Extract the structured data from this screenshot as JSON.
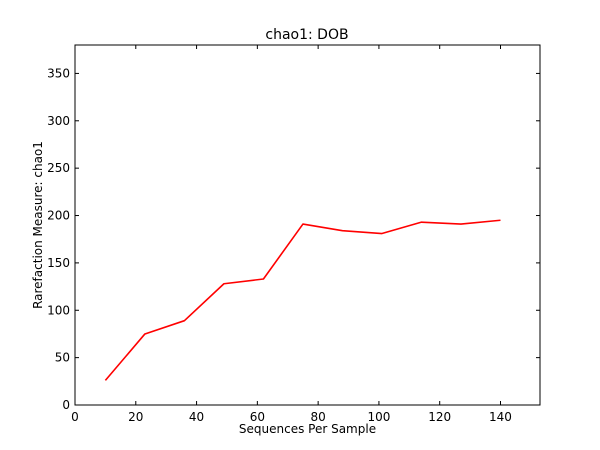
{
  "chart_data": {
    "type": "line",
    "title": "chao1: DOB",
    "xlabel": "Sequences Per Sample",
    "ylabel": "Rarefaction Measure: chao1",
    "xlim": [
      0,
      153
    ],
    "ylim": [
      0,
      380
    ],
    "x_ticks": [
      0,
      20,
      40,
      60,
      80,
      100,
      120,
      140
    ],
    "y_ticks": [
      0,
      50,
      100,
      150,
      200,
      250,
      300,
      350
    ],
    "grid": false,
    "series": [
      {
        "color": "#ff0000",
        "x": [
          10,
          23,
          36,
          49,
          62,
          75,
          88,
          101,
          114,
          127,
          140
        ],
        "y": [
          26,
          75,
          89,
          128,
          133,
          191,
          184,
          181,
          193,
          191,
          195
        ]
      }
    ]
  }
}
